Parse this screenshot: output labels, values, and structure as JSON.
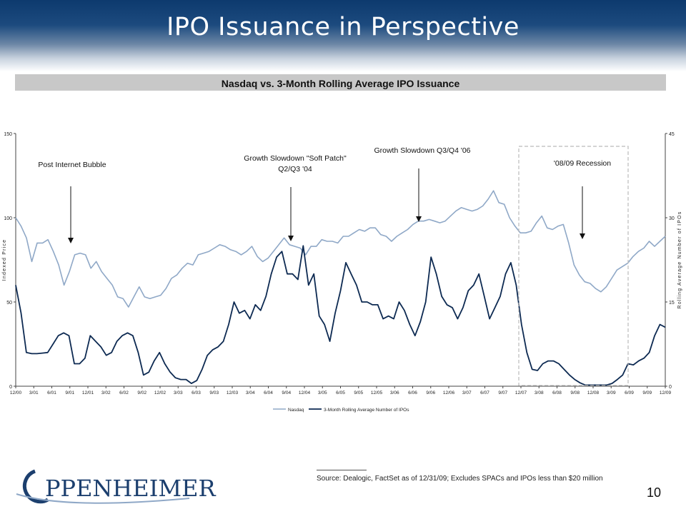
{
  "header": {
    "title": "IPO Issuance in Perspective"
  },
  "banner": {
    "text": "Nasdaq vs. 3-Month Rolling Average IPO Issuance"
  },
  "colors": {
    "nasdaq": "#8fa8c7",
    "ipo": "#0d2a52",
    "header": "#0d3a6e"
  },
  "chart_data": {
    "type": "line",
    "ylabel_left": "Indexed Price",
    "ylabel_right": "Rolling Average Number of IPOs",
    "ylim_left": [
      0,
      150
    ],
    "ylim_right": [
      0,
      45
    ],
    "yticks_left": [
      "0",
      "50",
      "100",
      "150"
    ],
    "yticks_right": [
      "0",
      "15",
      "30",
      "45"
    ],
    "x_tick_labels": [
      "12/00",
      "3/01",
      "6/01",
      "9/01",
      "12/01",
      "3/02",
      "6/02",
      "9/02",
      "12/02",
      "3/03",
      "6/03",
      "9/03",
      "12/03",
      "3/04",
      "6/04",
      "9/04",
      "12/04",
      "3/05",
      "6/05",
      "9/05",
      "12/05",
      "3/06",
      "6/06",
      "9/06",
      "12/06",
      "3/07",
      "6/07",
      "9/07",
      "12/07",
      "3/08",
      "6/08",
      "9/08",
      "12/08",
      "3/09",
      "6/09",
      "9/09",
      "12/09"
    ],
    "legend": {
      "position": "bottom",
      "entries": [
        "Nasdaq",
        "3-Month Rolling Average Number of IPOs"
      ]
    },
    "series": [
      {
        "name": "Nasdaq",
        "axis": "left",
        "values": [
          100,
          95,
          88,
          74,
          85,
          85,
          87,
          80,
          72,
          60,
          68,
          78,
          79,
          78,
          70,
          74,
          68,
          64,
          60,
          53,
          52,
          47,
          53,
          59,
          53,
          52,
          53,
          54,
          58,
          64,
          66,
          70,
          73,
          72,
          78,
          79,
          80,
          82,
          84,
          83,
          81,
          80,
          78,
          80,
          83,
          77,
          74,
          76,
          80,
          84,
          88,
          84,
          83,
          82,
          78,
          83,
          83,
          87,
          86,
          86,
          85,
          89,
          89,
          91,
          93,
          92,
          94,
          94,
          90,
          89,
          86,
          89,
          91,
          93,
          96,
          98,
          98,
          99,
          98,
          97,
          98,
          101,
          104,
          106,
          105,
          104,
          105,
          107,
          111,
          116,
          109,
          108,
          100,
          95,
          91,
          91,
          92,
          97,
          101,
          94,
          93,
          95,
          96,
          85,
          72,
          66,
          62,
          61,
          58,
          56,
          59,
          64,
          69,
          71,
          73,
          77,
          80,
          82,
          86,
          83,
          86,
          89
        ]
      },
      {
        "name": "3-Month Rolling Average Number of IPOs",
        "axis": "right",
        "values": [
          18,
          13,
          6,
          5.8,
          5.8,
          5.9,
          6,
          7.5,
          9,
          9.5,
          9,
          4,
          4,
          5,
          9,
          8,
          7,
          5.5,
          6,
          8,
          9,
          9.5,
          9,
          6,
          2,
          2.5,
          4.5,
          6,
          4,
          2.5,
          1.5,
          1.2,
          1.2,
          0.5,
          1,
          3,
          5.5,
          6.5,
          7,
          8,
          11,
          15,
          13,
          13.5,
          12,
          14.5,
          13.5,
          16,
          20,
          23,
          24,
          20,
          20,
          19,
          25,
          18,
          20,
          12.5,
          11,
          8,
          13,
          17,
          22,
          20,
          18,
          15,
          15,
          14.5,
          14.5,
          12,
          12.5,
          12,
          15,
          13.5,
          11,
          9,
          11.5,
          15,
          23,
          20,
          16,
          14.5,
          14,
          12,
          14,
          17,
          18,
          20,
          16,
          12,
          14,
          16,
          20,
          22,
          18,
          11,
          6,
          3,
          2.8,
          4,
          4.5,
          4.5,
          4,
          3,
          2,
          1.2,
          0.6,
          0.2,
          0.2,
          0.2,
          0.2,
          0.2,
          0.5,
          1.2,
          2,
          4,
          3.8,
          4.5,
          5,
          6,
          9,
          11,
          10.5
        ]
      }
    ],
    "annotations": [
      {
        "text": "Post Internet Bubble"
      },
      {
        "text": "Growth Slowdown \"Soft Patch\"",
        "text2": "Q2/Q3 '04"
      },
      {
        "text": "Growth Slowdown Q3/Q4 '06"
      },
      {
        "text": "'08/09 Recession"
      }
    ]
  },
  "footer": {
    "source": "Source: Dealogic, FactSet as of 12/31/09; Excludes SPACs and IPOs less than $20 million",
    "page_number": "10",
    "logo_text": "PPENHEIMER"
  }
}
